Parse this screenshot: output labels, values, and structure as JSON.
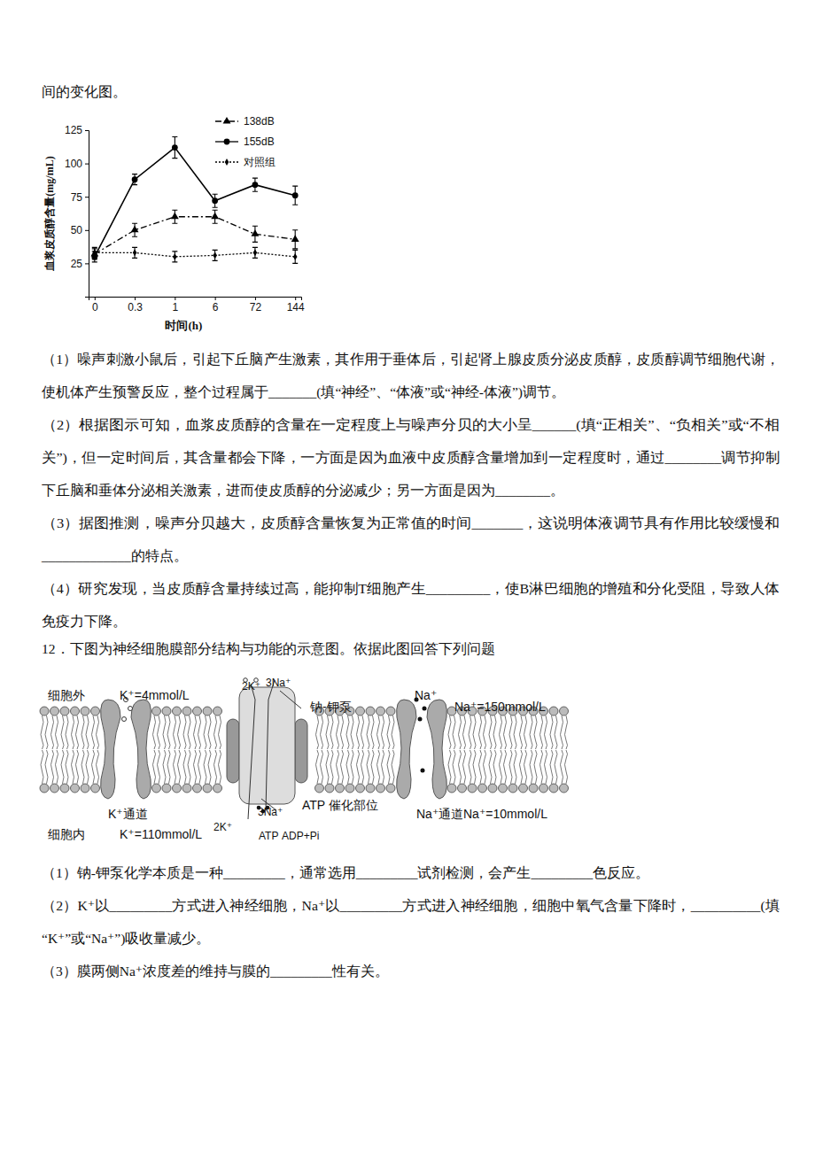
{
  "chart_data": {
    "type": "line",
    "x_label": "时间(h)",
    "y_label": "血浆皮质醇含量(mg/mL)",
    "categories": [
      "0",
      "0.3",
      "1",
      "6",
      "72",
      "144"
    ],
    "ylim": [
      0,
      125
    ],
    "yticks": [
      25,
      50,
      75,
      100,
      125
    ],
    "legend": "upper right",
    "series": [
      {
        "name": "138dB",
        "color": "#000000",
        "line_style": "dashdot",
        "marker": "triangle",
        "values": [
          32,
          50,
          60,
          60,
          47,
          43
        ],
        "errors": [
          4,
          5,
          5,
          5,
          6,
          7
        ]
      },
      {
        "name": "155dB",
        "color": "#000000",
        "line_style": "solid",
        "marker": "circle",
        "values": [
          30,
          88,
          112,
          72,
          84,
          76
        ],
        "errors": [
          4,
          4,
          8,
          5,
          5,
          7
        ]
      },
      {
        "name": "对照组",
        "color": "#000000",
        "line_style": "dotted",
        "marker": "diamond",
        "values": [
          33,
          33,
          30,
          31,
          33,
          30
        ],
        "errors": [
          4,
          4,
          4,
          4,
          4,
          5
        ]
      }
    ]
  },
  "document": {
    "intro": "间的变化图。",
    "q11": [
      {
        "lines": [
          "（1）噪声刺激小鼠后，引起下丘脑产生激素，其作用于垂体后，引起肾上腺皮质分泌皮质醇，皮质醇调节细胞代谢，",
          "使机体产生预警反应，整个过程属于_______(填“神经”、“体液”或“神经-体液”)调节。"
        ]
      },
      {
        "lines": [
          "（2）根据图示可知，血浆皮质醇的含量在一定程度上与噪声分贝的大小呈______(填“正相关”、“负相关”或“不相",
          "关”)，但一定时间后，其含量都会下降，一方面是因为血液中皮质醇含量增加到一定程度时，通过________调节抑制",
          "下丘脑和垂体分泌相关激素，进而使皮质醇的分泌减少；另一方面是因为________。"
        ]
      },
      {
        "lines": [
          "（3）据图推测，噪声分贝越大，皮质醇含量恢复为正常值的时间_______，这说明体液调节具有作用比较缓慢和",
          "_____________的特点。"
        ]
      },
      {
        "lines": [
          "（4）研究发现，当皮质醇含量持续过高，能抑制T细胞产生_________，使B淋巴细胞的增殖和分化受阻，导致人体",
          "免疫力下降。"
        ]
      }
    ],
    "q12_title": "12．下图为神经细胞膜部分结构与功能的示意图。依据此图回答下列问题",
    "diagram": {
      "labels": [
        "细胞外",
        "K⁺=4mmol/L",
        "2K⁺",
        "3Na⁺",
        "钠-钾泵",
        "Na⁺",
        "Na⁺=150mmol/L",
        "K⁺通道",
        "2K⁺",
        "3Na⁺",
        "ATP 催化部位",
        "Na⁺通道",
        "Na⁺=10mmol/L",
        "细胞内",
        "K⁺=110mmol/L",
        "ATP",
        "ADP+Pi"
      ]
    },
    "q12": [
      {
        "lines": [
          "（1）钠-钾泵化学本质是一种_________，通常选用_________试剂检测，会产生_________色反应。"
        ]
      },
      {
        "lines": [
          "（2）K⁺以_________方式进入神经细胞，Na⁺以_________方式进入神经细胞，细胞中氧气含量下降时，__________(填",
          "“K⁺”或“Na⁺”)吸收量减少。"
        ]
      },
      {
        "lines": [
          "（3）膜两侧Na⁺浓度差的维持与膜的_________性有关。"
        ]
      }
    ]
  }
}
